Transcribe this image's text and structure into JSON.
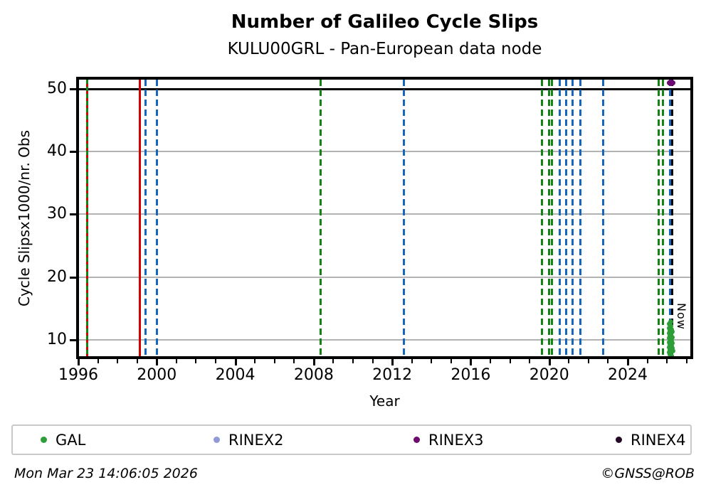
{
  "chart_data": {
    "type": "scatter",
    "title": "Number of Galileo Cycle Slips",
    "subtitle": "KULU00GRL - Pan-European data node",
    "xlabel": "Year",
    "ylabel": "Cycle Slipsx1000/nr. Obs",
    "xlim": [
      1995.9,
      2027.3
    ],
    "ylim": [
      6.9,
      51.8
    ],
    "xticks_major": [
      "1996",
      "2000",
      "2004",
      "2008",
      "2012",
      "2016",
      "2020",
      "2024"
    ],
    "xticks_minor_every_years": 1,
    "yticks": [
      "10",
      "20",
      "30",
      "40",
      "50"
    ],
    "grid": "horizontal-gray",
    "hline": {
      "y": 50,
      "color": "#000000"
    },
    "vlines": [
      {
        "year": 1996.44,
        "style": "dashed",
        "color_key": "green_red_overlap"
      },
      {
        "year": 1999.12,
        "style": "solid",
        "color_key": "red"
      },
      {
        "year": 1999.41,
        "style": "dashed",
        "color_key": "blue"
      },
      {
        "year": 2000.0,
        "style": "dashed",
        "color_key": "blue"
      },
      {
        "year": 2008.33,
        "style": "dashed",
        "color_key": "green"
      },
      {
        "year": 2012.58,
        "style": "dashed",
        "color_key": "blue"
      },
      {
        "year": 2019.61,
        "style": "dashed",
        "color_key": "green"
      },
      {
        "year": 2019.97,
        "style": "dashed",
        "color_key": "green"
      },
      {
        "year": 2020.12,
        "style": "dashed",
        "color_key": "green"
      },
      {
        "year": 2020.52,
        "style": "dashed",
        "color_key": "blue"
      },
      {
        "year": 2020.84,
        "style": "dashed",
        "color_key": "blue"
      },
      {
        "year": 2021.17,
        "style": "dashed",
        "color_key": "blue"
      },
      {
        "year": 2021.57,
        "style": "dashed",
        "color_key": "blue"
      },
      {
        "year": 2022.73,
        "style": "dashed",
        "color_key": "blue"
      },
      {
        "year": 2025.56,
        "style": "dashed",
        "color_key": "green"
      },
      {
        "year": 2025.78,
        "style": "dashed",
        "color_key": "green"
      },
      {
        "year": 2026.15,
        "style": "dashed",
        "color_key": "blue"
      },
      {
        "year": 2026.25,
        "style": "dashed",
        "color_key": "black"
      }
    ],
    "now_marker": {
      "label": "Now",
      "year": 2026.25
    },
    "rinex3_point": {
      "year": 2026.2,
      "value": 50.9
    },
    "gal_points": [
      [
        2026.18,
        12.9
      ],
      [
        2026.14,
        12.5
      ],
      [
        2026.21,
        12.2
      ],
      [
        2026.11,
        11.9
      ],
      [
        2026.24,
        11.65
      ],
      [
        2026.16,
        11.45
      ],
      [
        2026.28,
        11.25
      ],
      [
        2026.12,
        11.05
      ],
      [
        2026.2,
        10.85
      ],
      [
        2026.15,
        10.65
      ],
      [
        2026.26,
        10.45
      ],
      [
        2026.11,
        10.25
      ],
      [
        2026.19,
        10.05
      ],
      [
        2026.23,
        9.85
      ],
      [
        2026.13,
        9.65
      ],
      [
        2026.28,
        9.45
      ],
      [
        2026.16,
        9.25
      ],
      [
        2026.22,
        9.05
      ],
      [
        2026.12,
        8.85
      ],
      [
        2026.25,
        8.65
      ],
      [
        2026.17,
        8.45
      ],
      [
        2026.3,
        8.25
      ],
      [
        2026.14,
        8.05
      ],
      [
        2026.21,
        7.85
      ],
      [
        2026.16,
        7.65
      ],
      [
        2026.23,
        7.45
      ]
    ],
    "legend": [
      {
        "label": "GAL",
        "color": "#2e9e38"
      },
      {
        "label": "RINEX2",
        "color": "#9099d8"
      },
      {
        "label": "RINEX3",
        "color": "#6e0b6e"
      },
      {
        "label": "RINEX4",
        "color": "#230826"
      }
    ],
    "colors": {
      "green": "#128412",
      "blue": "#1766bd",
      "red": "#d40000",
      "black": "#000000",
      "gal_scatter": "#2e9e38",
      "rinex3_scatter": "#6a0c74",
      "grid": "#b3b3b3"
    },
    "legend_position": "bottom"
  },
  "footer": {
    "left": "Mon Mar 23 14:06:05 2026",
    "right": "©GNSS@ROB"
  }
}
